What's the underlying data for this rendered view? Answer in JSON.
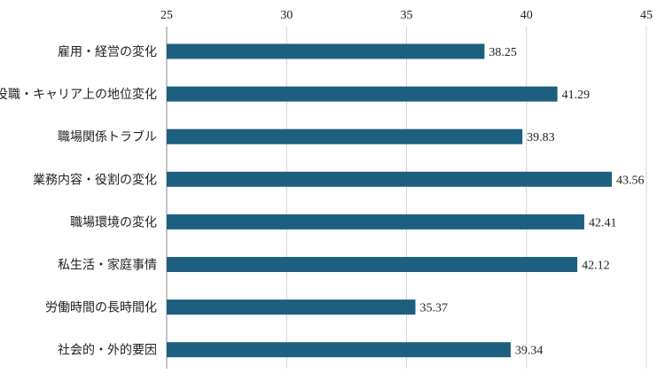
{
  "chart_data": {
    "type": "bar",
    "orientation": "horizontal",
    "axis_position": "top",
    "grid": true,
    "xlim": [
      25,
      45
    ],
    "ticks": [
      25,
      30,
      35,
      40,
      45
    ],
    "bar_color": "#1c5f7e",
    "categories": [
      "雇用・経営の変化",
      "役職・キャリア上の地位変化",
      "職場関係トラブル",
      "業務内容・役割の変化",
      "職場環境の変化",
      "私生活・家庭事情",
      "労働時間の長時間化",
      "社会的・外的要因"
    ],
    "values": [
      38.25,
      41.29,
      39.83,
      43.56,
      42.41,
      42.12,
      35.37,
      39.34
    ],
    "value_labels": [
      "38.25",
      "41.29",
      "39.83",
      "43.56",
      "42.41",
      "42.12",
      "35.37",
      "39.34"
    ]
  }
}
